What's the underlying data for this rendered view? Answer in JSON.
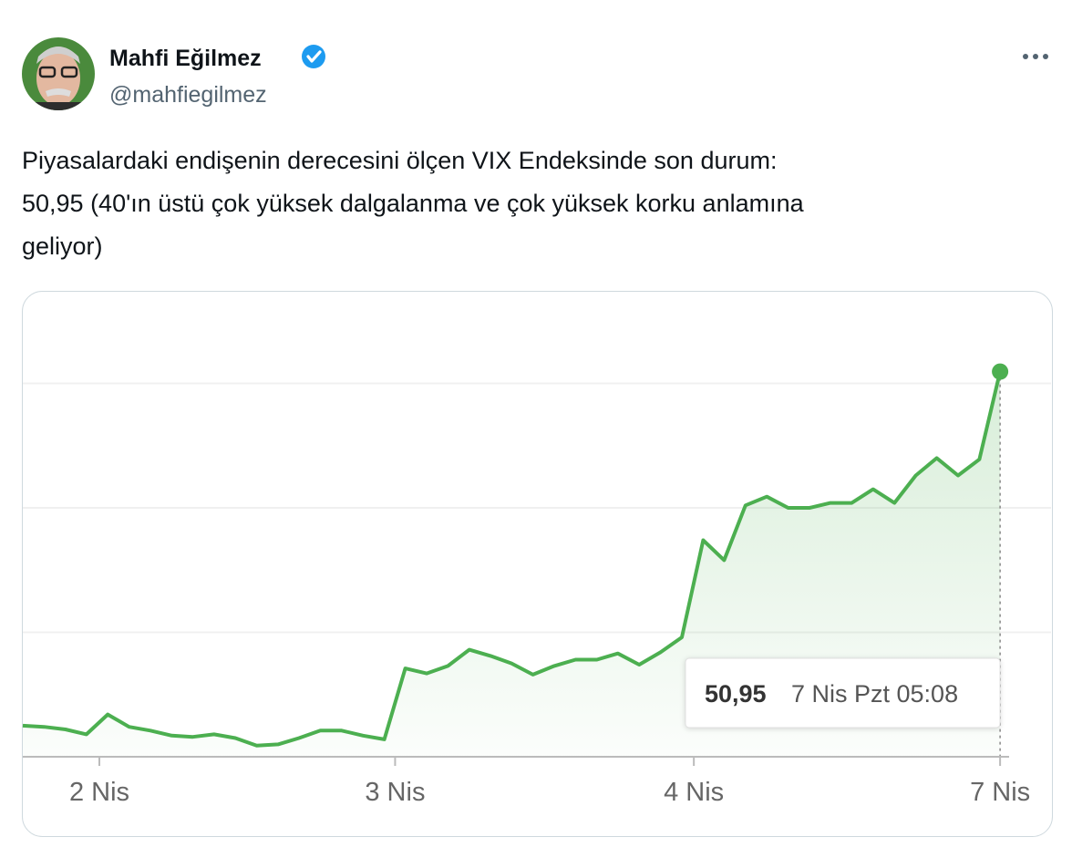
{
  "tweet": {
    "name": "Mahfi Eğilmez",
    "handle": "@mahfiegilmez",
    "text_lines": [
      "Piyasalardaki endişenin derecesini ölçen VIX Endeksinde son durum:",
      "50,95 (40'ın üstü çok yüksek dalgalanma ve çok yüksek korku anlamına",
      "geliyor)"
    ]
  },
  "chart_data": {
    "type": "line",
    "x": [
      -0.255,
      -0.184,
      -0.113,
      -0.043,
      0.028,
      0.099,
      0.17,
      0.241,
      0.311,
      0.382,
      0.453,
      0.524,
      0.595,
      0.665,
      0.736,
      0.807,
      0.878,
      0.949,
      1.019,
      1.09,
      1.161,
      1.232,
      1.303,
      1.373,
      1.444,
      1.515,
      1.586,
      1.657,
      1.727,
      1.798,
      1.869,
      1.94,
      2.011,
      2.081,
      2.152,
      2.223,
      2.294,
      2.365,
      2.435,
      2.506,
      2.577,
      2.648,
      2.719,
      2.789,
      2.86,
      2.931,
      3.0
    ],
    "series": [
      {
        "name": "VIX",
        "color": "#4caf50",
        "values": [
          22.5,
          22.4,
          22.2,
          21.8,
          23.4,
          22.4,
          22.1,
          21.7,
          21.6,
          21.8,
          21.5,
          20.9,
          21.0,
          21.5,
          22.1,
          22.1,
          21.7,
          21.4,
          27.1,
          26.7,
          27.3,
          28.6,
          28.1,
          27.5,
          26.6,
          27.3,
          27.8,
          27.8,
          28.3,
          27.4,
          28.4,
          29.6,
          37.4,
          35.8,
          40.2,
          40.9,
          40.0,
          40.0,
          40.4,
          40.4,
          41.5,
          40.4,
          42.6,
          44.0,
          42.6,
          43.9,
          50.95
        ]
      }
    ],
    "xlim": [
      -0.255,
      3.03
    ],
    "xticks": [
      {
        "value": 0,
        "label": "2 Nis"
      },
      {
        "value": 0.985,
        "label": "3 Nis"
      },
      {
        "value": 1.98,
        "label": "4 Nis"
      },
      {
        "value": 3.0,
        "label": "7 Nis"
      }
    ],
    "ylim": [
      20,
      57
    ],
    "ygrid": [
      30,
      40,
      50
    ],
    "tooltip": {
      "value_label": "50,95",
      "time": "7 Nis Pzt 05:08"
    }
  }
}
